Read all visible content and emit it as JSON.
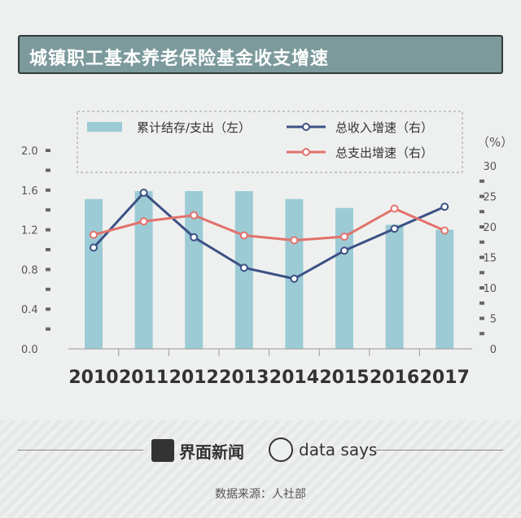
{
  "header": {
    "title": "城镇职工基本养老保险基金收支增速"
  },
  "chart_data": {
    "type": "bar",
    "categories": [
      "2010",
      "2011",
      "2012",
      "2013",
      "2014",
      "2015",
      "2016",
      "2017"
    ],
    "left_axis": {
      "ticks": [
        "2.0",
        "1.6",
        "1.2",
        "0.8",
        "0.4",
        "0.0"
      ],
      "ylim": [
        0,
        2.0
      ]
    },
    "right_axis": {
      "unit_label": "（%）",
      "ticks": [
        "30",
        "25",
        "20",
        "15",
        "10",
        "5",
        "0"
      ],
      "ylim": [
        0,
        30
      ]
    },
    "series": [
      {
        "name": "累计结存/支出（左）",
        "kind": "bar",
        "axis": "left",
        "color": "#9ccbd5",
        "values": [
          1.51,
          1.59,
          1.59,
          1.59,
          1.51,
          1.42,
          1.25,
          1.2
        ]
      },
      {
        "name": "总收入增速（右）",
        "kind": "line",
        "axis": "right",
        "color": "#3c5184",
        "values": [
          16.6,
          25.6,
          18.3,
          13.3,
          11.5,
          16.1,
          19.7,
          23.3
        ]
      },
      {
        "name": "总支出增速（右）",
        "kind": "line",
        "axis": "right",
        "color": "#e2726b",
        "values": [
          18.7,
          20.9,
          21.9,
          18.6,
          17.8,
          18.4,
          23.0,
          19.4
        ]
      }
    ],
    "legend": "top, inside dashed box",
    "grid": false
  },
  "footer": {
    "brand": "界面新闻",
    "datasays": "data says",
    "source": "数据来源：人社部"
  }
}
